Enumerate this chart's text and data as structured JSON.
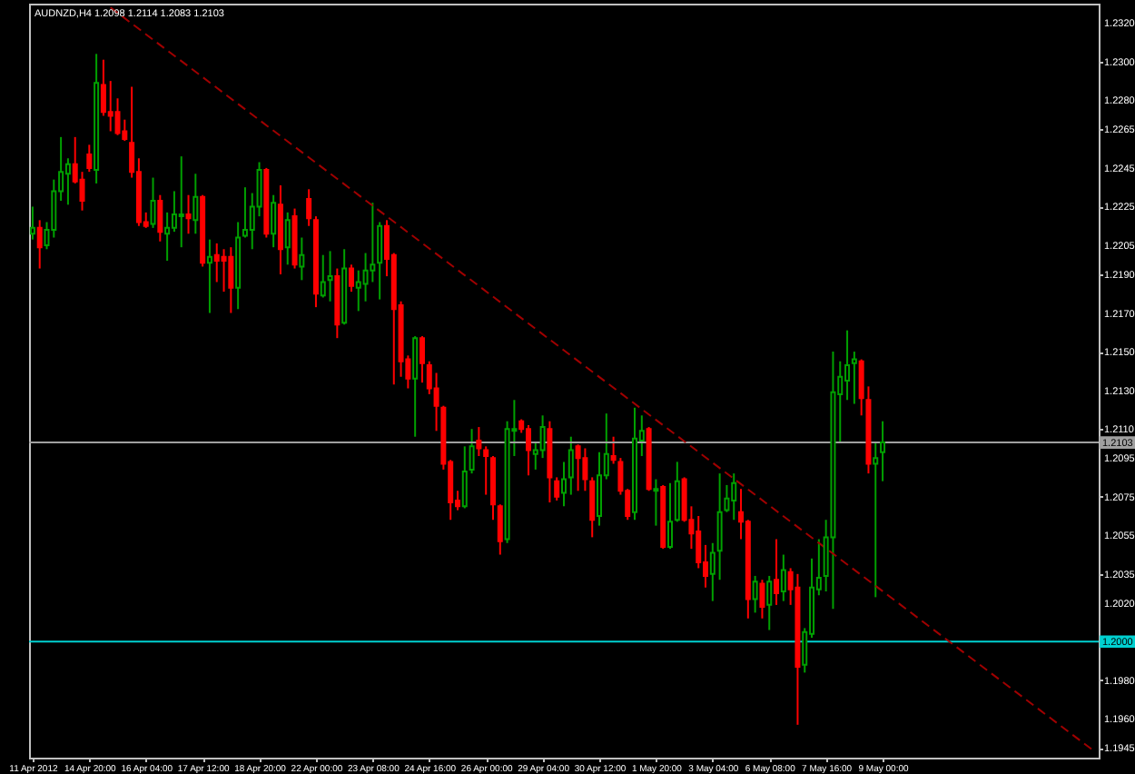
{
  "chart_data": {
    "type": "candlestick",
    "title": "AUDNZD,H4  1.2098 1.2114 1.2083 1.2103",
    "categories": [
      "11 Apr 2012",
      null,
      null,
      null,
      null,
      null,
      null,
      null,
      "14 Apr 20:00",
      null,
      null,
      null,
      null,
      null,
      null,
      null,
      "16 Apr 04:00",
      null,
      null,
      null,
      null,
      null,
      null,
      null,
      "17 Apr 12:00",
      null,
      null,
      null,
      null,
      null,
      null,
      null,
      "18 Apr 20:00",
      null,
      null,
      null,
      null,
      null,
      null,
      null,
      "22 Apr 00:00",
      null,
      null,
      null,
      null,
      null,
      null,
      null,
      "23 Apr 08:00",
      null,
      null,
      null,
      null,
      null,
      null,
      null,
      "24 Apr 16:00",
      null,
      null,
      null,
      null,
      null,
      null,
      null,
      "26 Apr 00:00",
      null,
      null,
      null,
      null,
      null,
      null,
      null,
      "29 Apr 04:00",
      null,
      null,
      null,
      null,
      null,
      null,
      null,
      "30 Apr 12:00",
      null,
      null,
      null,
      null,
      null,
      null,
      null,
      "1 May 20:00",
      null,
      null,
      null,
      null,
      null,
      null,
      null,
      "3 May 04:00",
      null,
      null,
      null,
      null,
      null,
      null,
      null,
      "6 May 08:00",
      null,
      null,
      null,
      null,
      null,
      null,
      null,
      "7 May 16:00",
      null,
      null,
      null,
      null,
      null,
      null,
      null,
      "9 May 00:00",
      null,
      null,
      null,
      null,
      null,
      null,
      null,
      null,
      null,
      null,
      null,
      null,
      null,
      null,
      null,
      null,
      null,
      null,
      null,
      null,
      null,
      null,
      null,
      null,
      null,
      null,
      null,
      null,
      null,
      null
    ],
    "ohlc": [
      [
        1.2211,
        1.2225,
        1.2208,
        1.2214
      ],
      [
        1.2214,
        1.2218,
        1.2193,
        1.2204
      ],
      [
        1.2205,
        1.2217,
        1.2203,
        1.2213
      ],
      [
        1.2213,
        1.2239,
        1.2209,
        1.2233
      ],
      [
        1.2233,
        1.2261,
        1.2228,
        1.2243
      ],
      [
        1.2242,
        1.225,
        1.2226,
        1.2247
      ],
      [
        1.2247,
        1.2261,
        1.2237,
        1.2238
      ],
      [
        1.2239,
        1.2243,
        1.2223,
        1.2228
      ],
      [
        1.2252,
        1.2257,
        1.2243,
        1.2245
      ],
      [
        1.2244,
        1.2304,
        1.2237,
        1.2289
      ],
      [
        1.2288,
        1.2301,
        1.2272,
        1.2274
      ],
      [
        1.2274,
        1.229,
        1.2264,
        1.2272
      ],
      [
        1.2274,
        1.2281,
        1.2262,
        1.2263
      ],
      [
        1.2264,
        1.227,
        1.2259,
        1.226
      ],
      [
        1.2258,
        1.2287,
        1.224,
        1.2243
      ],
      [
        1.2243,
        1.225,
        1.2215,
        1.2217
      ],
      [
        1.2217,
        1.2222,
        1.2214,
        1.2215
      ],
      [
        1.2216,
        1.224,
        1.2214,
        1.2228
      ],
      [
        1.2228,
        1.2231,
        1.2207,
        1.2212
      ],
      [
        1.2211,
        1.2222,
        1.2197,
        1.2214
      ],
      [
        1.2214,
        1.2233,
        1.2212,
        1.2221
      ],
      [
        1.222,
        1.2251,
        1.2204,
        1.2221
      ],
      [
        1.2221,
        1.2231,
        1.2211,
        1.2219
      ],
      [
        1.2218,
        1.2242,
        1.2211,
        1.223
      ],
      [
        1.223,
        1.2231,
        1.2194,
        1.2196
      ],
      [
        1.2196,
        1.2208,
        1.217,
        1.2199
      ],
      [
        1.22,
        1.2206,
        1.2186,
        1.2197
      ],
      [
        1.2199,
        1.2203,
        1.2181,
        1.2197
      ],
      [
        1.2199,
        1.2204,
        1.217,
        1.2183
      ],
      [
        1.2183,
        1.2217,
        1.2172,
        1.2209
      ],
      [
        1.221,
        1.2235,
        1.2209,
        1.2213
      ],
      [
        1.2213,
        1.2232,
        1.2203,
        1.2225
      ],
      [
        1.2225,
        1.2248,
        1.222,
        1.2244
      ],
      [
        1.2244,
        1.2245,
        1.2209,
        1.2211
      ],
      [
        1.2211,
        1.2231,
        1.2204,
        1.2227
      ],
      [
        1.2226,
        1.2236,
        1.219,
        1.2203
      ],
      [
        1.2204,
        1.2222,
        1.2195,
        1.2218
      ],
      [
        1.222,
        1.2224,
        1.2193,
        1.2195
      ],
      [
        1.2194,
        1.2209,
        1.2187,
        1.22
      ],
      [
        1.2229,
        1.2234,
        1.2215,
        1.2219
      ],
      [
        1.2218,
        1.222,
        1.2173,
        1.218
      ],
      [
        1.2179,
        1.22,
        1.2178,
        1.2186
      ],
      [
        1.2187,
        1.2202,
        1.2176,
        1.2189
      ],
      [
        1.2189,
        1.2193,
        1.2157,
        1.2164
      ],
      [
        1.2165,
        1.2203,
        1.2164,
        1.2193
      ],
      [
        1.2193,
        1.2195,
        1.2181,
        1.2184
      ],
      [
        1.2183,
        1.2192,
        1.2171,
        1.2186
      ],
      [
        1.2185,
        1.2201,
        1.2176,
        1.2192
      ],
      [
        1.2192,
        1.2227,
        1.2186,
        1.2195
      ],
      [
        1.2196,
        1.2217,
        1.2177,
        1.2215
      ],
      [
        1.2215,
        1.2218,
        1.2189,
        1.2198
      ],
      [
        1.22,
        1.2201,
        1.2133,
        1.2172
      ],
      [
        1.2174,
        1.2176,
        1.2137,
        1.2145
      ],
      [
        1.2146,
        1.2148,
        1.2131,
        1.2136
      ],
      [
        1.2136,
        1.2158,
        1.2106,
        1.2157
      ],
      [
        1.2157,
        1.2158,
        1.2134,
        1.2144
      ],
      [
        1.2143,
        1.2145,
        1.2128,
        1.2131
      ],
      [
        1.2131,
        1.2139,
        1.2109,
        1.2122
      ],
      [
        1.2121,
        1.2122,
        1.2089,
        1.2092
      ],
      [
        1.2093,
        1.2094,
        1.2063,
        1.2072
      ],
      [
        1.2073,
        1.2078,
        1.2068,
        1.207
      ],
      [
        1.207,
        1.2101,
        1.2069,
        1.2088
      ],
      [
        1.2089,
        1.211,
        1.2087,
        1.2101
      ],
      [
        1.2104,
        1.2111,
        1.2096,
        1.21
      ],
      [
        1.2099,
        1.2101,
        1.2076,
        1.2096
      ],
      [
        1.2095,
        1.2096,
        1.2063,
        1.2071
      ],
      [
        1.207,
        1.2071,
        1.2045,
        1.2052
      ],
      [
        1.2053,
        1.2114,
        1.2051,
        1.211
      ],
      [
        1.2109,
        1.2125,
        1.2096,
        1.211
      ],
      [
        1.2114,
        1.2115,
        1.2108,
        1.211
      ],
      [
        1.211,
        1.2112,
        1.2086,
        1.2099
      ],
      [
        1.2097,
        1.2103,
        1.2089,
        1.2099
      ],
      [
        1.2099,
        1.2117,
        1.2095,
        1.2111
      ],
      [
        1.211,
        1.2114,
        1.2072,
        1.2085
      ],
      [
        1.2083,
        1.2085,
        1.2073,
        1.2075
      ],
      [
        1.2077,
        1.2093,
        1.207,
        1.2084
      ],
      [
        1.2085,
        1.2106,
        1.2076,
        1.2099
      ],
      [
        1.2101,
        1.2102,
        1.2078,
        1.2095
      ],
      [
        1.2095,
        1.21,
        1.2078,
        1.2084
      ],
      [
        1.2083,
        1.2085,
        1.2054,
        1.2063
      ],
      [
        1.2065,
        1.2098,
        1.206,
        1.2086
      ],
      [
        1.2086,
        1.2118,
        1.2084,
        1.2097
      ],
      [
        1.2096,
        1.2106,
        1.2092,
        1.2094
      ],
      [
        1.2093,
        1.2095,
        1.2076,
        1.2078
      ],
      [
        1.2078,
        1.2079,
        1.2063,
        1.2065
      ],
      [
        1.2067,
        1.2121,
        1.2063,
        1.2105
      ],
      [
        1.2104,
        1.2117,
        1.2096,
        1.2109
      ],
      [
        1.211,
        1.2111,
        1.2078,
        1.2079
      ],
      [
        1.2078,
        1.2084,
        1.206,
        1.2079
      ],
      [
        1.208,
        1.2081,
        1.2048,
        1.2049
      ],
      [
        1.2049,
        1.2082,
        1.2048,
        1.2062
      ],
      [
        1.2063,
        1.2093,
        1.2062,
        1.2083
      ],
      [
        1.2084,
        1.2085,
        1.2062,
        1.2063
      ],
      [
        1.2063,
        1.207,
        1.2048,
        1.2056
      ],
      [
        1.2057,
        1.2065,
        1.2038,
        1.2041
      ],
      [
        1.2041,
        1.205,
        1.2028,
        1.2034
      ],
      [
        1.2035,
        1.2051,
        1.2021,
        1.2046
      ],
      [
        1.2047,
        1.2087,
        1.2032,
        1.2067
      ],
      [
        1.2068,
        1.2081,
        1.2067,
        1.2074
      ],
      [
        1.2073,
        1.2087,
        1.2063,
        1.2082
      ],
      [
        1.2067,
        1.2079,
        1.2053,
        1.2062
      ],
      [
        1.2062,
        1.2063,
        1.2012,
        1.2022
      ],
      [
        1.2022,
        1.2034,
        1.2015,
        1.2031
      ],
      [
        1.203,
        1.2032,
        1.2012,
        1.2018
      ],
      [
        1.2019,
        1.2034,
        1.2006,
        1.2031
      ],
      [
        1.2032,
        1.2053,
        1.2019,
        1.2025
      ],
      [
        1.2026,
        1.2045,
        1.2021,
        1.2037
      ],
      [
        1.2036,
        1.2038,
        1.2019,
        1.2027
      ],
      [
        1.2028,
        1.2035,
        1.1957,
        1.1987
      ],
      [
        1.1988,
        1.2007,
        1.1984,
        1.2005
      ],
      [
        1.2004,
        1.2043,
        1.2002,
        1.2028
      ],
      [
        1.2027,
        1.2053,
        1.2024,
        1.2033
      ],
      [
        1.2034,
        1.2063,
        1.2026,
        1.2054
      ],
      [
        1.2054,
        1.215,
        1.2017,
        1.2129
      ],
      [
        1.2128,
        1.2145,
        1.2103,
        1.2137
      ],
      [
        1.2135,
        1.2161,
        1.2125,
        1.2143
      ],
      [
        1.2144,
        1.215,
        1.2123,
        1.2146
      ],
      [
        1.2145,
        1.2146,
        1.2117,
        1.2126
      ],
      [
        1.2125,
        1.2132,
        1.2087,
        1.2092
      ],
      [
        1.2092,
        1.2103,
        1.2023,
        1.2095
      ],
      [
        1.2098,
        1.2114,
        1.2083,
        1.2103
      ],
      null,
      null,
      null,
      null,
      null,
      null,
      null,
      null,
      null,
      null,
      null,
      null,
      null,
      null,
      null,
      null,
      null,
      null,
      null,
      null,
      null,
      null,
      null,
      null,
      null,
      null,
      null,
      null,
      null,
      null
    ],
    "colors": [
      "#00a000",
      "#ff0000",
      "#00a000",
      "#00a000",
      "#00a000",
      "#00a000",
      "#ff0000",
      "#ff0000",
      "#ff0000",
      "#00a000",
      "#ff0000",
      "#ff0000",
      "#ff0000",
      "#ff0000",
      "#ff0000",
      "#ff0000",
      "#ff0000",
      "#00a000",
      "#ff0000",
      "#00a000",
      "#00a000",
      "#00a000",
      "#ff0000",
      "#00a000",
      "#ff0000",
      "#00a000",
      "#ff0000",
      "#ff0000",
      "#ff0000",
      "#00a000",
      "#00a000",
      "#00a000",
      "#00a000",
      "#ff0000",
      "#00a000",
      "#ff0000",
      "#00a000",
      "#ff0000",
      "#00a000",
      "#ff0000",
      "#ff0000",
      "#00a000",
      "#00a000",
      "#ff0000",
      "#00a000",
      "#ff0000",
      "#00a000",
      "#00a000",
      "#00a000",
      "#00a000",
      "#ff0000",
      "#ff0000",
      "#ff0000",
      "#ff0000",
      "#00a000",
      "#ff0000",
      "#ff0000",
      "#ff0000",
      "#ff0000",
      "#ff0000",
      "#ff0000",
      "#00a000",
      "#00a000",
      "#ff0000",
      "#ff0000",
      "#ff0000",
      "#ff0000",
      "#00a000",
      "#00a000",
      "#ff0000",
      "#ff0000",
      "#00a000",
      "#00a000",
      "#ff0000",
      "#ff0000",
      "#00a000",
      "#00a000",
      "#ff0000",
      "#ff0000",
      "#ff0000",
      "#00a000",
      "#00a000",
      "#ff0000",
      "#ff0000",
      "#ff0000",
      "#00a000",
      "#00a000",
      "#ff0000",
      "#00a000",
      "#ff0000",
      "#00a000",
      "#00a000",
      "#ff0000",
      "#ff0000",
      "#ff0000",
      "#ff0000",
      "#00a000",
      "#00a000",
      "#00a000",
      "#00a000",
      "#ff0000",
      "#ff0000",
      "#00a000",
      "#ff0000",
      "#00a000",
      "#ff0000",
      "#00a000",
      "#ff0000",
      "#ff0000",
      "#00a000",
      "#00a000",
      "#00a000",
      "#00a000",
      "#00a000",
      "#00a000",
      "#00a000",
      "#00a000",
      "#ff0000",
      "#ff0000",
      "#00a000",
      "#00a000",
      null,
      null,
      null,
      null,
      null,
      null,
      null,
      null,
      null,
      null,
      null,
      null,
      null,
      null,
      null,
      null,
      null,
      null,
      null,
      null,
      null,
      null,
      null,
      null,
      null,
      null,
      null,
      null,
      null,
      null
    ],
    "series": [
      {
        "type": "line",
        "color": "#a00000",
        "line_style": "dashed",
        "values": [
          null,
          null,
          null,
          null,
          null,
          null,
          null,
          null,
          null,
          null,
          null,
          1.2328,
          null,
          null,
          null,
          null,
          null,
          null,
          null,
          null,
          null,
          null,
          null,
          null,
          null,
          null,
          null,
          null,
          null,
          null,
          null,
          null,
          null,
          null,
          null,
          null,
          null,
          null,
          null,
          null,
          null,
          null,
          null,
          null,
          null,
          null,
          null,
          null,
          null,
          null,
          null,
          null,
          null,
          null,
          null,
          null,
          null,
          null,
          null,
          null,
          null,
          null,
          null,
          null,
          null,
          null,
          null,
          null,
          null,
          null,
          null,
          null,
          null,
          null,
          null,
          null,
          null,
          null,
          null,
          null,
          null,
          null,
          null,
          null,
          null,
          null,
          null,
          null,
          null,
          null,
          null,
          null,
          null,
          null,
          null,
          null,
          null,
          null,
          null,
          null,
          null,
          null,
          null,
          null,
          null,
          null,
          null,
          null,
          null,
          null,
          null,
          null,
          null,
          null,
          null,
          null,
          null,
          null,
          null,
          null,
          null,
          null,
          null,
          null,
          null,
          null,
          null,
          null,
          null,
          null,
          null,
          null,
          null,
          null,
          null,
          null,
          null,
          null,
          null,
          null,
          null,
          null,
          null,
          null,
          null,
          null,
          null,
          null,
          null,
          null,
          1.1943
        ]
      }
    ],
    "ylim": [
      1.194,
      1.233
    ],
    "yticks": [
      {
        "value": 1.232,
        "label": "1.2320"
      },
      {
        "value": 1.23,
        "label": "1.2300"
      },
      {
        "value": 1.228,
        "label": "1.2280"
      },
      1.2265,
      1.2245,
      1.2225,
      1.2205,
      {
        "value": 1.219,
        "label": "1.2190"
      },
      {
        "value": 1.217,
        "label": "1.2170"
      },
      {
        "value": 1.215,
        "label": "1.2150"
      },
      {
        "value": 1.213,
        "label": "1.2130"
      },
      {
        "value": 1.211,
        "label": "1.2110"
      },
      1.2095,
      1.2075,
      1.2055,
      1.2035,
      {
        "value": 1.202,
        "label": "1.2020"
      },
      {
        "value": 1.198,
        "label": "1.1980"
      },
      {
        "value": 1.196,
        "label": "1.1960"
      },
      1.1945
    ],
    "ref_lines": [
      {
        "axis": "y",
        "value": 1.2103,
        "label": "1.2103",
        "color": "#a0a0a0"
      },
      {
        "axis": "y",
        "value": 1.2,
        "label": "1.2000",
        "color": "#00d0d0"
      }
    ]
  }
}
